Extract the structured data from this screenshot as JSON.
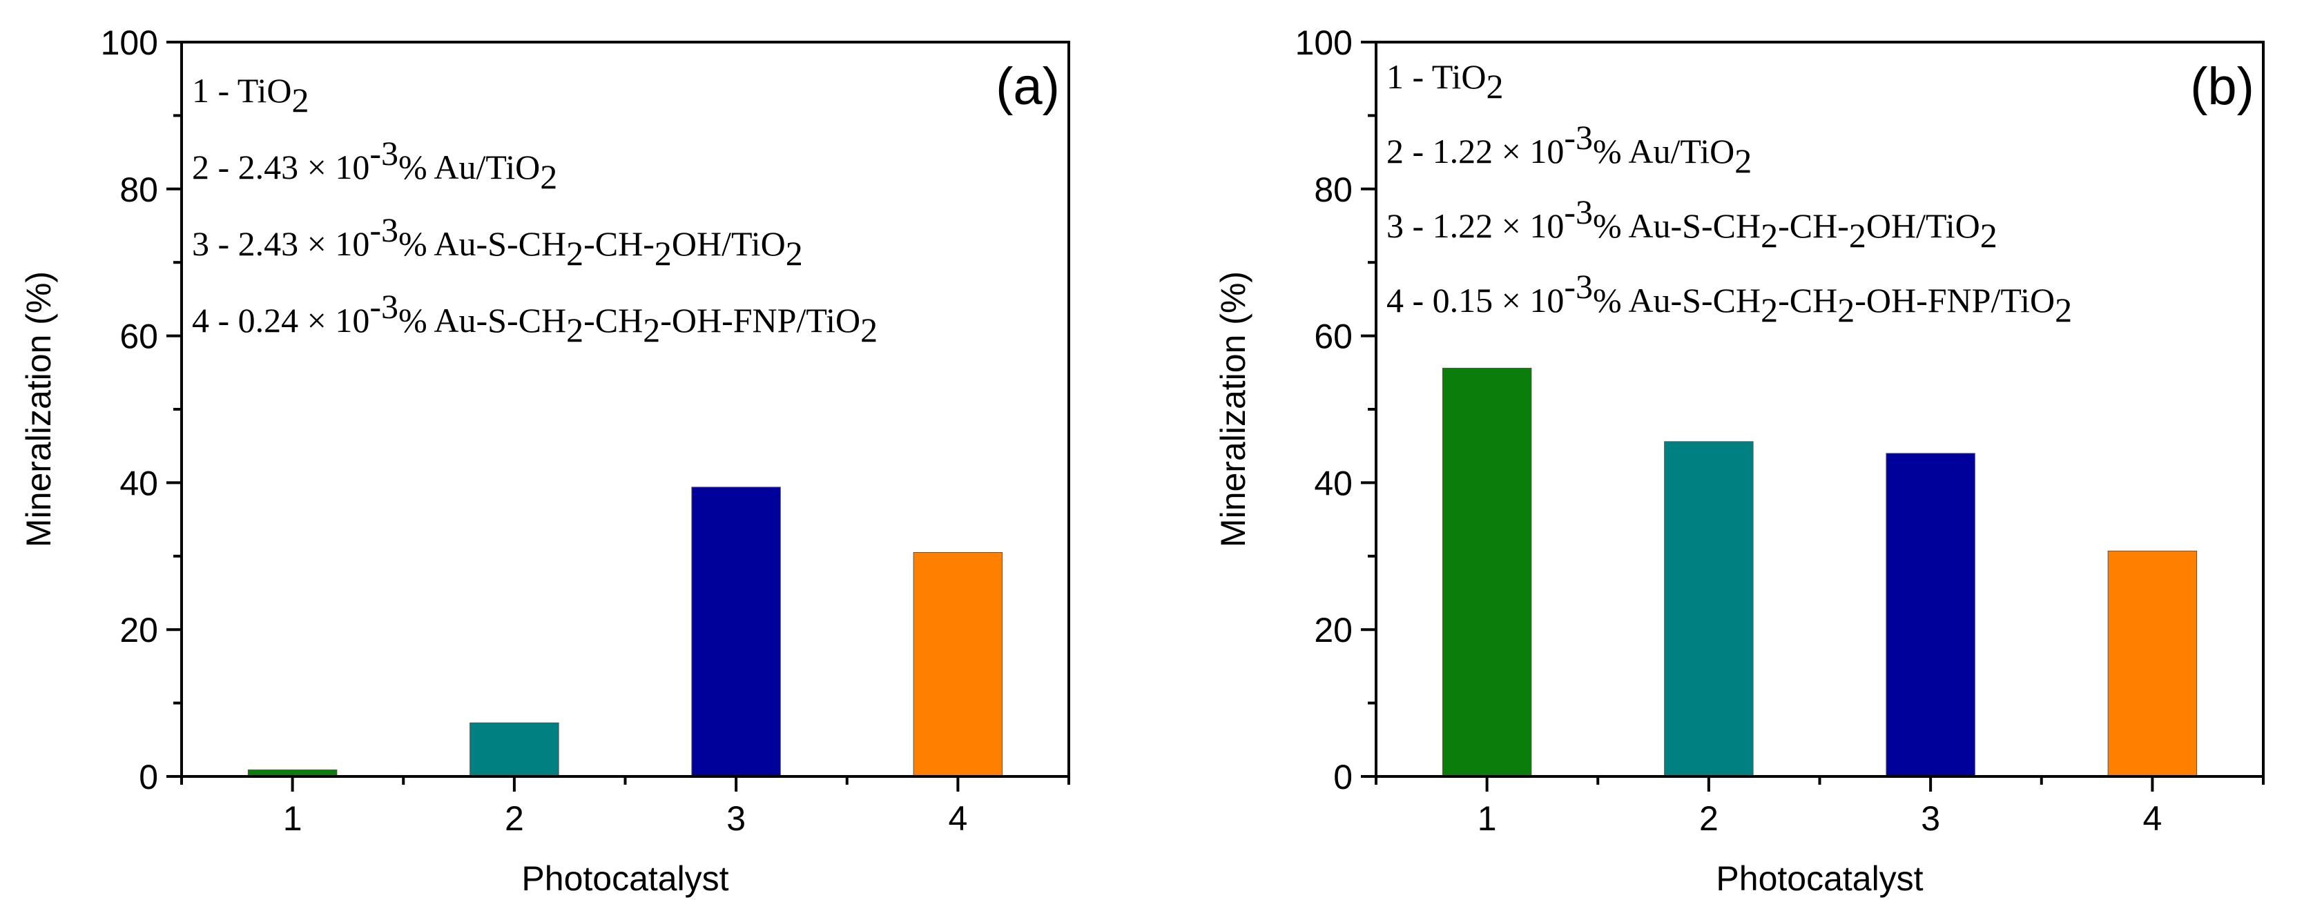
{
  "chart_data": [
    {
      "type": "bar",
      "panel_label": "(a)",
      "categories": [
        "1",
        "2",
        "3",
        "4"
      ],
      "values": [
        0.9,
        7.3,
        39.4,
        30.5
      ],
      "colors": [
        "#0a7d0a",
        "#008080",
        "#00009b",
        "#ff8000"
      ],
      "xlabel": "Photocatalyst",
      "ylabel": "Mineralization (%)",
      "ylim": [
        0,
        100
      ],
      "yticks": [
        "0",
        "20",
        "40",
        "60",
        "80",
        "100"
      ],
      "legend": [
        [
          {
            "t": "1 - TiO"
          },
          {
            "t": "2",
            "s": "sub"
          }
        ],
        [
          {
            "t": "2 - 2.43 × 10"
          },
          {
            "t": "-3",
            "s": "sup"
          },
          {
            "t": "% Au/TiO"
          },
          {
            "t": "2",
            "s": "sub"
          }
        ],
        [
          {
            "t": "3 - 2.43 × 10"
          },
          {
            "t": "-3",
            "s": "sup"
          },
          {
            "t": "% Au-S-CH"
          },
          {
            "t": "2",
            "s": "sub"
          },
          {
            "t": "-CH-"
          },
          {
            "t": "2",
            "s": "sub"
          },
          {
            "t": "OH/TiO"
          },
          {
            "t": "2",
            "s": "sub"
          }
        ],
        [
          {
            "t": "4 - 0.24 × 10"
          },
          {
            "t": "-3",
            "s": "sup"
          },
          {
            "t": "% Au-S-CH"
          },
          {
            "t": "2",
            "s": "sub"
          },
          {
            "t": "-CH"
          },
          {
            "t": "2",
            "s": "sub"
          },
          {
            "t": "-OH-FNP/TiO"
          },
          {
            "t": "2",
            "s": "sub"
          }
        ]
      ]
    },
    {
      "type": "bar",
      "panel_label": "(b)",
      "categories": [
        "1",
        "2",
        "3",
        "4"
      ],
      "values": [
        55.6,
        45.6,
        44.0,
        30.7
      ],
      "colors": [
        "#0a7d0a",
        "#008080",
        "#00009b",
        "#ff8000"
      ],
      "xlabel": "Photocatalyst",
      "ylabel": "Mineralization (%)",
      "ylim": [
        0,
        100
      ],
      "yticks": [
        "0",
        "20",
        "40",
        "60",
        "80",
        "100"
      ],
      "legend": [
        [
          {
            "t": "1 - TiO"
          },
          {
            "t": "2",
            "s": "sub"
          }
        ],
        [
          {
            "t": "2 - 1.22 × 10"
          },
          {
            "t": "-3",
            "s": "sup"
          },
          {
            "t": "% Au/TiO"
          },
          {
            "t": "2",
            "s": "sub"
          }
        ],
        [
          {
            "t": "3 - 1.22 × 10"
          },
          {
            "t": "-3",
            "s": "sup"
          },
          {
            "t": "% Au-S-CH"
          },
          {
            "t": "2",
            "s": "sub"
          },
          {
            "t": "-CH-"
          },
          {
            "t": "2",
            "s": "sub"
          },
          {
            "t": "OH/TiO"
          },
          {
            "t": "2",
            "s": "sub"
          }
        ],
        [
          {
            "t": "4 - 0.15 × 10"
          },
          {
            "t": "-3",
            "s": "sup"
          },
          {
            "t": "% Au-S-CH"
          },
          {
            "t": "2",
            "s": "sub"
          },
          {
            "t": "-CH"
          },
          {
            "t": "2",
            "s": "sub"
          },
          {
            "t": "-OH-FNP/TiO"
          },
          {
            "t": "2",
            "s": "sub"
          }
        ]
      ]
    }
  ]
}
